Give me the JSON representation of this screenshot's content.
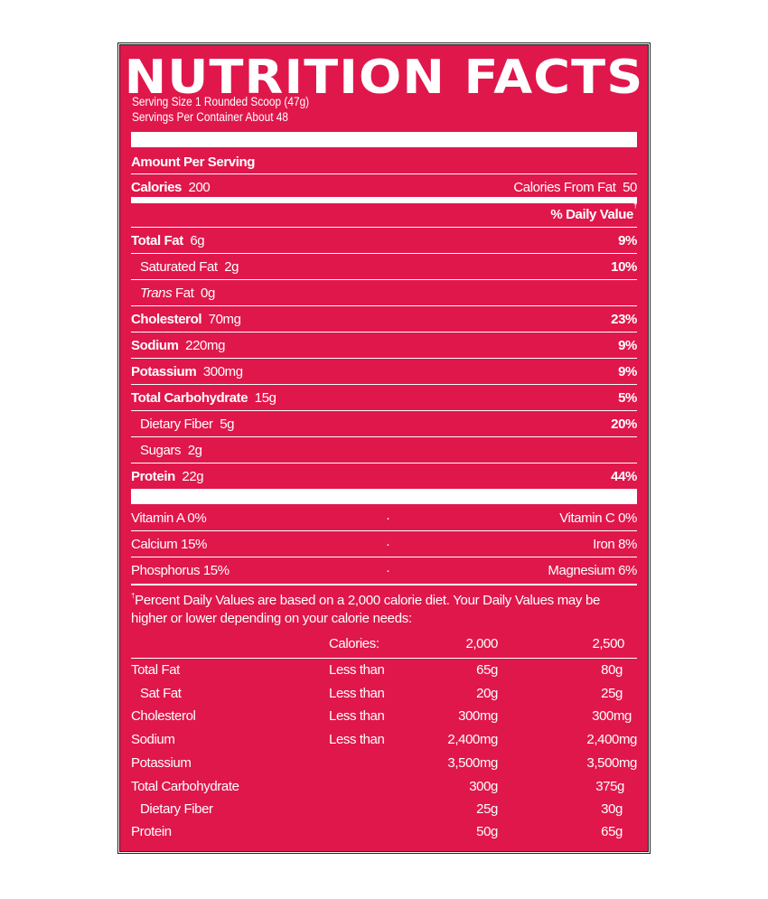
{
  "title": "NUTRITION FACTS",
  "serving_size": "Serving Size 1 Rounded Scoop (47g)",
  "servings_per_container": "Servings Per Container About 48",
  "amount_per_serving": "Amount Per Serving",
  "calories": {
    "label": "Calories",
    "value": "200",
    "from_fat_label": "Calories From Fat",
    "from_fat_value": "50"
  },
  "daily_value_header": "% Daily Value",
  "dagger": "†",
  "nutrients": [
    {
      "label": "Total Fat",
      "amount": "6g",
      "dv": "9%"
    },
    {
      "label": "Saturated Fat",
      "amount": "2g",
      "dv": "10%"
    },
    {
      "label_italic": "Trans",
      "label": "Fat",
      "amount": "0g",
      "dv": ""
    },
    {
      "label": "Cholesterol",
      "amount": "70mg",
      "dv": "23%"
    },
    {
      "label": "Sodium",
      "amount": "220mg",
      "dv": "9%"
    },
    {
      "label": "Potassium",
      "amount": "300mg",
      "dv": "9%"
    },
    {
      "label": "Total Carbohydrate",
      "amount": "15g",
      "dv": "5%"
    },
    {
      "label": "Dietary Fiber",
      "amount": "5g",
      "dv": "20%"
    },
    {
      "label": "Sugars",
      "amount": "2g",
      "dv": ""
    },
    {
      "label": "Protein",
      "amount": "22g",
      "dv": "44%"
    }
  ],
  "vitamins": [
    {
      "left": "Vitamin A  0%",
      "sep": "·",
      "right": "Vitamin C  0%"
    },
    {
      "left": "Calcium  15%",
      "sep": "·",
      "right": "Iron  8%"
    },
    {
      "left": "Phosphorus  15%",
      "sep": "·",
      "right": "Magnesium  6%"
    }
  ],
  "footnote": "Percent Daily Values are based on a 2,000 calorie diet. Your Daily Values may be higher or lower depending on your calorie needs:",
  "dv_table": {
    "header": [
      "",
      "Calories:",
      "2,000",
      "2,500"
    ],
    "rows": [
      [
        "Total Fat",
        "Less than",
        "65g",
        "80g"
      ],
      [
        "Sat Fat",
        "Less than",
        "20g",
        "25g"
      ],
      [
        "Cholesterol",
        "Less than",
        "300mg",
        "300mg"
      ],
      [
        "Sodium",
        "Less than",
        "2,400mg",
        "2,400mg"
      ],
      [
        "Potassium",
        "",
        "3,500mg",
        "3,500mg"
      ],
      [
        "Total Carbohydrate",
        "",
        "300g",
        "375g"
      ],
      [
        "Dietary Fiber",
        "",
        "25g",
        "30g"
      ],
      [
        "Protein",
        "",
        "50g",
        "65g"
      ]
    ]
  },
  "colors": {
    "background": "#e0174b",
    "text": "#ffffff"
  }
}
